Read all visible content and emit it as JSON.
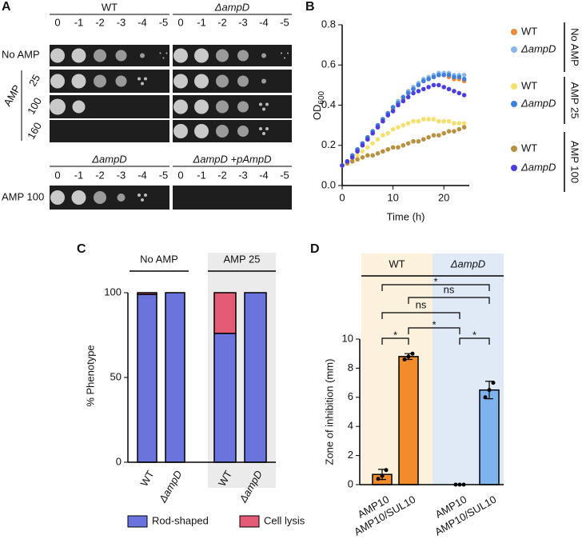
{
  "panel_labels": [
    "A",
    "B",
    "C",
    "D"
  ],
  "panel_a": {
    "strains_top": [
      "WT",
      "ΔampD"
    ],
    "dilutions": [
      "0",
      "-1",
      "-2",
      "-3",
      "-4",
      "-5"
    ],
    "row_label_no_amp": "No AMP",
    "row_label_amp": "AMP",
    "concentrations": [
      "25",
      "100",
      "160"
    ],
    "strains_bottom": [
      "ΔampD",
      "ΔampD +pAmpD"
    ],
    "bottom_row_label": "AMP 100"
  },
  "chart_data": [
    {
      "type": "scatter",
      "x_label": "Time (h)",
      "y_label": "OD",
      "y_label_sub": "600",
      "x": [
        0,
        1,
        2,
        3,
        4,
        5,
        6,
        7,
        8,
        9,
        10,
        11,
        12,
        13,
        14,
        15,
        16,
        17,
        18,
        19,
        20,
        21,
        22,
        23,
        24
      ],
      "xlim": [
        0,
        25
      ],
      "xticks": [
        0,
        10,
        20
      ],
      "ylim": [
        0,
        0.8
      ],
      "yticks": [
        {
          "value": 0,
          "label": "0.0"
        },
        {
          "value": 0.2,
          "label": "0.2"
        },
        {
          "value": 0.4,
          "label": "0.4"
        },
        {
          "value": 0.6,
          "label": "0.6"
        },
        {
          "value": 0.8,
          "label": "0.8"
        }
      ],
      "legend_groups": [
        {
          "label": "No AMP",
          "series": [
            {
              "name": "WT",
              "color": "#ee8a3c",
              "values": [
                0.1,
                0.12,
                0.14,
                0.17,
                0.2,
                0.23,
                0.26,
                0.29,
                0.32,
                0.35,
                0.38,
                0.41,
                0.43,
                0.46,
                0.48,
                0.5,
                0.52,
                0.53,
                0.54,
                0.55,
                0.55,
                0.54,
                0.53,
                0.53,
                0.52
              ]
            },
            {
              "name": "ΔampD",
              "color": "#86b6ec",
              "values": [
                0.1,
                0.12,
                0.15,
                0.18,
                0.21,
                0.24,
                0.27,
                0.3,
                0.33,
                0.36,
                0.39,
                0.42,
                0.44,
                0.47,
                0.49,
                0.51,
                0.53,
                0.54,
                0.55,
                0.56,
                0.56,
                0.56,
                0.55,
                0.55,
                0.55
              ]
            }
          ]
        },
        {
          "label": "AMP 25",
          "series": [
            {
              "name": "WT",
              "color": "#f6e06c",
              "values": [
                0.1,
                0.11,
                0.13,
                0.15,
                0.17,
                0.19,
                0.21,
                0.23,
                0.25,
                0.26,
                0.28,
                0.29,
                0.3,
                0.31,
                0.32,
                0.32,
                0.33,
                0.33,
                0.33,
                0.32,
                0.32,
                0.32,
                0.31,
                0.31,
                0.31
              ]
            },
            {
              "name": "ΔampD",
              "color": "#3c7fdc",
              "values": [
                0.1,
                0.12,
                0.15,
                0.18,
                0.21,
                0.24,
                0.27,
                0.3,
                0.33,
                0.36,
                0.39,
                0.41,
                0.44,
                0.46,
                0.48,
                0.5,
                0.52,
                0.53,
                0.54,
                0.55,
                0.55,
                0.55,
                0.54,
                0.54,
                0.53
              ]
            }
          ]
        },
        {
          "label": "AMP 100",
          "series": [
            {
              "name": "WT",
              "color": "#b8913f",
              "values": [
                0.1,
                0.11,
                0.12,
                0.13,
                0.14,
                0.15,
                0.15,
                0.16,
                0.17,
                0.18,
                0.19,
                0.19,
                0.2,
                0.21,
                0.22,
                0.22,
                0.23,
                0.24,
                0.25,
                0.25,
                0.26,
                0.27,
                0.27,
                0.28,
                0.29
              ]
            },
            {
              "name": "ΔampD",
              "color": "#4a3ee2",
              "values": [
                0.1,
                0.12,
                0.14,
                0.17,
                0.2,
                0.23,
                0.26,
                0.29,
                0.32,
                0.35,
                0.37,
                0.4,
                0.42,
                0.44,
                0.46,
                0.47,
                0.48,
                0.49,
                0.5,
                0.5,
                0.49,
                0.48,
                0.47,
                0.46,
                0.45
              ]
            }
          ]
        }
      ]
    },
    {
      "type": "stacked_bar",
      "y_label": "% Phenotype",
      "categories": [
        "WT",
        "ΔampD",
        "WT",
        "ΔampD"
      ],
      "groups": [
        {
          "label": "No AMP",
          "shaded": false
        },
        {
          "label": "AMP 25",
          "shaded": true
        }
      ],
      "ylim": [
        0,
        100
      ],
      "yticks": [
        0,
        50,
        100
      ],
      "series": [
        {
          "name": "Rod-shaped",
          "color": "#6b74dc",
          "values": [
            99,
            100,
            76,
            100
          ]
        },
        {
          "name": "Cell lysis",
          "color": "#e35b74",
          "values": [
            1,
            0,
            24,
            0
          ]
        }
      ]
    },
    {
      "type": "bar",
      "y_label": "Zone of inhibition (mm)",
      "categories": [
        "AMP10",
        "AMP10/SUL10",
        "AMP10",
        "AMP10/SUL10"
      ],
      "groups": [
        {
          "label": "WT",
          "color": "#fcf1dd"
        },
        {
          "label": "ΔampD",
          "color": "#dfeaf6"
        }
      ],
      "values": [
        0.7,
        8.8,
        0,
        6.5
      ],
      "errors": [
        0.35,
        0.2,
        0,
        0.6
      ],
      "points": [
        [
          0.4,
          0.6,
          1.0
        ],
        [
          8.6,
          8.8,
          9.0
        ],
        [
          0,
          0,
          0
        ],
        [
          6.0,
          6.5,
          7.0
        ]
      ],
      "colors": [
        "#f28c2a",
        "#f28c2a",
        "#7fb3ee",
        "#7fb3ee"
      ],
      "ylim": [
        0,
        10
      ],
      "yticks": [
        0,
        2,
        4,
        6,
        8,
        10
      ],
      "comparisons": [
        {
          "pair": [
            0,
            1
          ],
          "label": "*"
        },
        {
          "pair": [
            2,
            3
          ],
          "label": "*"
        },
        {
          "pair": [
            1,
            2
          ],
          "label": "*"
        },
        {
          "pair": [
            0,
            2
          ],
          "label": "ns"
        },
        {
          "pair": [
            1,
            3
          ],
          "label": "ns"
        },
        {
          "pair": [
            0,
            3
          ],
          "label": "*"
        }
      ]
    }
  ]
}
